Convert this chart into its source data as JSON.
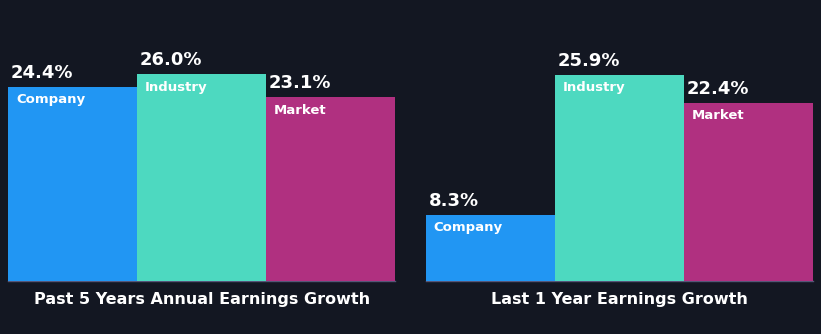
{
  "background_color": "#131722",
  "group1": {
    "title": "Past 5 Years Annual Earnings Growth",
    "bars": [
      {
        "label": "Company",
        "value": 24.4,
        "color": "#2196f3"
      },
      {
        "label": "Industry",
        "value": 26.0,
        "color": "#4dd9c0"
      },
      {
        "label": "Market",
        "value": 23.1,
        "color": "#b03080"
      }
    ]
  },
  "group2": {
    "title": "Last 1 Year Earnings Growth",
    "bars": [
      {
        "label": "Company",
        "value": 8.3,
        "color": "#2196f3"
      },
      {
        "label": "Industry",
        "value": 25.9,
        "color": "#4dd9c0"
      },
      {
        "label": "Market",
        "value": 22.4,
        "color": "#b03080"
      }
    ]
  },
  "text_color": "#ffffff",
  "value_fontsize": 13,
  "title_fontsize": 11.5,
  "bar_label_fontsize": 9.5
}
